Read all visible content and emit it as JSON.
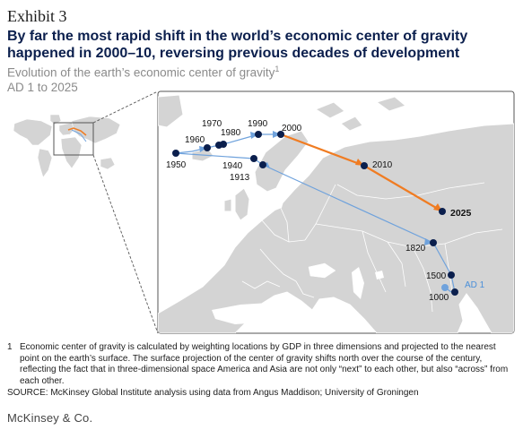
{
  "header": {
    "exhibit": "Exhibit 3",
    "headline_line1": "By far the most rapid shift in the world’s economic center of gravity",
    "headline_line2": "happened in 2000–10, reversing previous decades of development",
    "subtitle": "Evolution of the earth’s economic center of gravity",
    "subtitle_marker": "1",
    "range": "AD 1 to 2025"
  },
  "map": {
    "colors": {
      "land": "#d4d4d4",
      "border": "#ffffff",
      "historical_path": "#6fa2dc",
      "recent_path": "#f07c22",
      "point": "#0b1f4d"
    },
    "points": [
      {
        "label": "AD 1",
        "period": "historical",
        "emphasis": "blue"
      },
      {
        "label": "1000",
        "period": "historical"
      },
      {
        "label": "1500",
        "period": "historical"
      },
      {
        "label": "1820",
        "period": "historical"
      },
      {
        "label": "1913",
        "period": "historical"
      },
      {
        "label": "1940",
        "period": "historical"
      },
      {
        "label": "1950",
        "period": "historical"
      },
      {
        "label": "1960",
        "period": "historical"
      },
      {
        "label": "1970",
        "period": "historical"
      },
      {
        "label": "1980",
        "period": "historical"
      },
      {
        "label": "1990",
        "period": "historical"
      },
      {
        "label": "2000",
        "period": "recent"
      },
      {
        "label": "2010",
        "period": "recent"
      },
      {
        "label": "2025",
        "period": "recent",
        "emphasis": "bold"
      }
    ]
  },
  "footnote": {
    "marker": "1",
    "text": "Economic center of gravity is calculated by weighting locations by GDP in three dimensions and projected to the nearest point on the earth’s surface. The surface projection of the center of gravity shifts north over the course of the century, reflecting the fact that in three-dimensional space America and Asia are not only “next” to each other, but also “across” from each other."
  },
  "source": "SOURCE: McKinsey Global Institute analysis using data from Angus Maddison; University of Groningen",
  "brand": "McKinsey & Co."
}
